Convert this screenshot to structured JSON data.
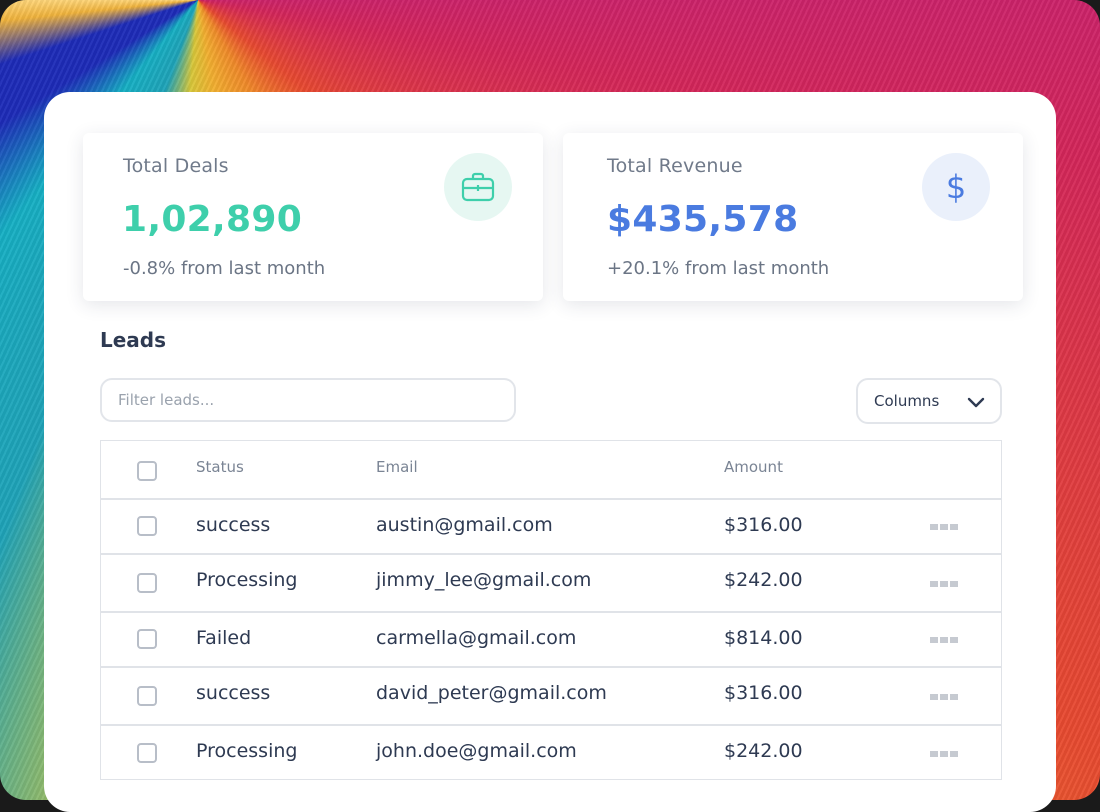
{
  "stats": {
    "deals": {
      "label": "Total Deals",
      "value": "1,02,890",
      "delta": "-0.8% from last month",
      "icon": "briefcase-icon",
      "accent": "#3ecfab",
      "icon_bg": "#e6f7f2"
    },
    "revenue": {
      "label": "Total Revenue",
      "value": "$435,578",
      "delta": "+20.1% from last month",
      "icon": "dollar-icon",
      "icon_glyph": "$",
      "accent": "#4a7be0",
      "icon_bg": "#eaf0fb"
    }
  },
  "leads": {
    "title": "Leads",
    "filter_placeholder": "Filter leads...",
    "columns_label": "Columns",
    "headers": {
      "status": "Status",
      "email": "Email",
      "amount": "Amount"
    },
    "rows": [
      {
        "status": "success",
        "email": "austin@gmail.com",
        "amount": "$316.00"
      },
      {
        "status": "Processing",
        "email": "jimmy_lee@gmail.com",
        "amount": "$242.00"
      },
      {
        "status": "Failed",
        "email": "carmella@gmail.com",
        "amount": "$814.00"
      },
      {
        "status": "success",
        "email": "david_peter@gmail.com",
        "amount": "$316.00"
      },
      {
        "status": "Processing",
        "email": "john.doe@gmail.com",
        "amount": "$242.00"
      }
    ]
  }
}
